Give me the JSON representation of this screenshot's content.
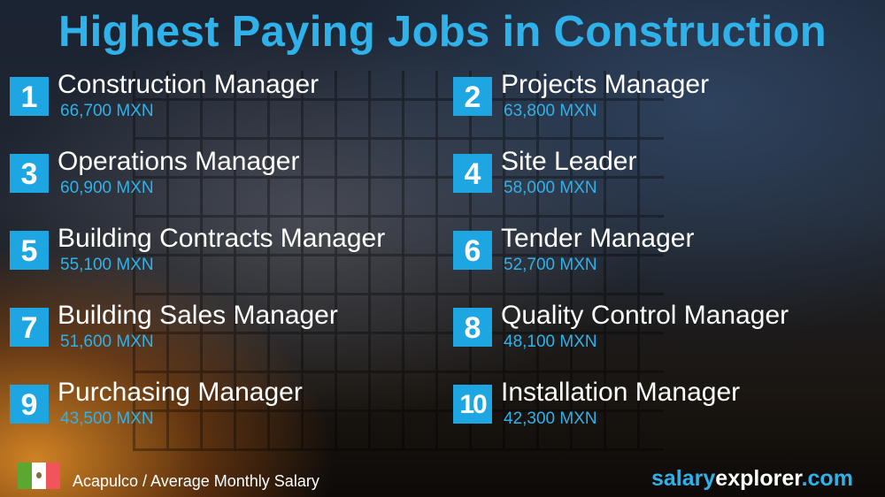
{
  "title": "Highest Paying Jobs in Construction",
  "jobs": [
    {
      "rank": "1",
      "title": "Construction Manager",
      "salary": "66,700 MXN"
    },
    {
      "rank": "2",
      "title": "Projects Manager",
      "salary": "63,800 MXN"
    },
    {
      "rank": "3",
      "title": "Operations Manager",
      "salary": "60,900 MXN"
    },
    {
      "rank": "4",
      "title": "Site Leader",
      "salary": "58,000 MXN"
    },
    {
      "rank": "5",
      "title": "Building Contracts Manager",
      "salary": "55,100 MXN"
    },
    {
      "rank": "6",
      "title": "Tender Manager",
      "salary": "52,700 MXN"
    },
    {
      "rank": "7",
      "title": "Building Sales Manager",
      "salary": "51,600 MXN"
    },
    {
      "rank": "8",
      "title": "Quality Control Manager",
      "salary": "48,100 MXN"
    },
    {
      "rank": "9",
      "title": "Purchasing Manager",
      "salary": "43,500 MXN"
    },
    {
      "rank": "10",
      "title": "Installation Manager",
      "salary": "42,300 MXN"
    }
  ],
  "footer": {
    "location": "Acapulco / Average Monthly Salary",
    "flag": "mexico-flag",
    "brand_a": "salary",
    "brand_b": "explorer",
    "brand_c": ".com"
  },
  "colors": {
    "accent": "#1ea6e3"
  }
}
